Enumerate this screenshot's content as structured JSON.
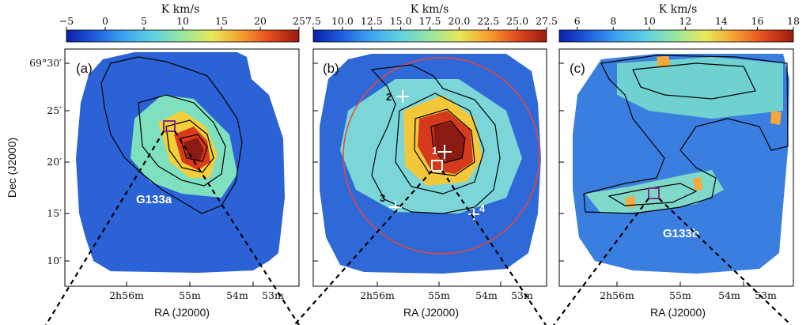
{
  "chart_data": [
    {
      "type": "heatmap",
      "panel_label": "(a)",
      "colorbar": {
        "unit": "K km/s",
        "min": -5,
        "max": 25,
        "ticks": [
          "−5",
          "0",
          "5",
          "10",
          "15",
          "20",
          "25"
        ]
      },
      "region_label": "G133a",
      "xlabel": "RA (J2000)",
      "ylabel": "Dec (J2000)",
      "x_ticks": [
        "2h56m",
        "55m",
        "54m",
        "53m"
      ],
      "y_ticks": [
        "69°30′",
        "25′",
        "20′",
        "15′",
        "10′"
      ],
      "markers": [
        {
          "type": "square",
          "color": "#7b2f8c"
        }
      ]
    },
    {
      "type": "heatmap",
      "panel_label": "(b)",
      "colorbar": {
        "unit": "K km/s",
        "min": 7.5,
        "max": 27.5,
        "ticks": [
          "7.5",
          "10.0",
          "12.5",
          "15.0",
          "17.5",
          "20.0",
          "22.5",
          "25.0",
          "27.5"
        ]
      },
      "xlabel": "RA (J2000)",
      "x_ticks": [
        "2h56m",
        "55m",
        "54m",
        "53m"
      ],
      "circle_color": "#e8473f",
      "markers": [
        {
          "type": "cross",
          "label": "1"
        },
        {
          "type": "cross",
          "label": "2"
        },
        {
          "type": "cross",
          "label": "3"
        },
        {
          "type": "cross",
          "label": "4"
        },
        {
          "type": "square",
          "color": "#ffffff"
        }
      ]
    },
    {
      "type": "heatmap",
      "panel_label": "(c)",
      "colorbar": {
        "unit": "K km/s",
        "min": 5,
        "max": 18,
        "ticks": [
          "6",
          "8",
          "10",
          "12",
          "14",
          "16",
          "18"
        ]
      },
      "region_label": "G133b",
      "xlabel": "RA (J2000)",
      "x_ticks": [
        "2h56m",
        "55m",
        "54m",
        "53m"
      ],
      "markers": [
        {
          "type": "square",
          "color": "#7b2f8c"
        }
      ]
    }
  ],
  "colormap": [
    "#0b1fa8",
    "#1f5fe0",
    "#3da6f0",
    "#5fd3e0",
    "#9ae6a0",
    "#e8e85a",
    "#f5a030",
    "#e34a1e",
    "#9a1a10"
  ]
}
